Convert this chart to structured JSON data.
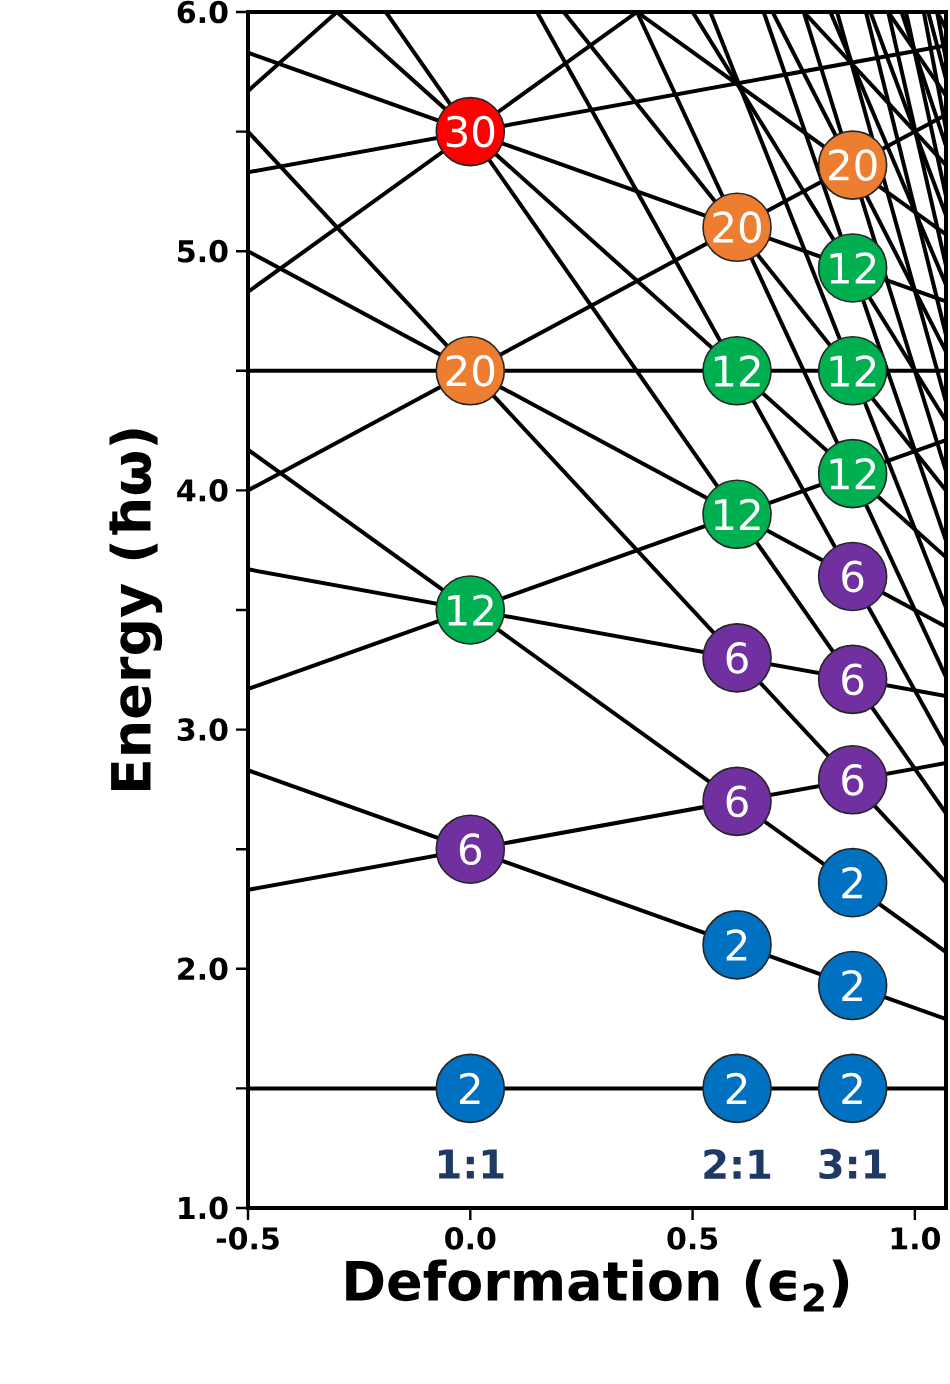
{
  "chart_data": {
    "type": "line",
    "xlabel": "Deformation (ϵ$_{2}$)",
    "ylabel": "Energy (ħω)",
    "xlim": [
      -0.5,
      1.07
    ],
    "ylim": [
      1.0,
      6.0
    ],
    "xticks": [
      {
        "value": -0.5,
        "label": "-0.5"
      },
      {
        "value": 0,
        "label": "0.0"
      },
      {
        "value": 0.5,
        "label": "0.5"
      },
      {
        "value": 1.0,
        "label": "1.0"
      }
    ],
    "yticks": [
      {
        "value": 1,
        "label": "1.0"
      },
      {
        "value": 1.5,
        "label": null
      },
      {
        "value": 2,
        "label": "2.0"
      },
      {
        "value": 2.5,
        "label": null
      },
      {
        "value": 3,
        "label": "3.0"
      },
      {
        "value": 3.5,
        "label": null
      },
      {
        "value": 4,
        "label": "4.0"
      },
      {
        "value": 4.5,
        "label": null
      },
      {
        "value": 5,
        "label": "5.0"
      },
      {
        "value": 5.5,
        "label": null
      },
      {
        "value": 6,
        "label": "6.0"
      }
    ],
    "annotations": [
      "1:1",
      "2:1",
      "3:1",
      {
        "text": "2",
        "x": 0,
        "y": 1.5
      },
      {
        "text": "2",
        "x": 0.6,
        "y": 1.5
      },
      {
        "text": "2",
        "x": 0.86,
        "y": 1.5
      },
      {
        "text": "2",
        "x": 0.6,
        "y": 2.1
      },
      {
        "text": "2",
        "x": 0.86,
        "y": 1.93
      },
      {
        "text": "2",
        "x": 0.86,
        "y": 2.36
      },
      {
        "text": "6",
        "x": 0,
        "y": 2.5
      },
      {
        "text": "6",
        "x": 0.6,
        "y": 2.7
      },
      {
        "text": "6",
        "x": 0.6,
        "y": 3.3
      },
      {
        "text": "6",
        "x": 0.86,
        "y": 2.79
      },
      {
        "text": "6",
        "x": 0.86,
        "y": 3.21
      },
      {
        "text": "6",
        "x": 0.86,
        "y": 3.64
      },
      {
        "text": "12",
        "x": 0,
        "y": 3.5
      },
      {
        "text": "12",
        "x": 0.6,
        "y": 3.9
      },
      {
        "text": "12",
        "x": 0.6,
        "y": 4.5
      },
      {
        "text": "12",
        "x": 0.86,
        "y": 4.07
      },
      {
        "text": "12",
        "x": 0.86,
        "y": 4.5
      },
      {
        "text": "12",
        "x": 0.86,
        "y": 4.93
      },
      {
        "text": "20",
        "x": 0,
        "y": 4.5
      },
      {
        "text": "20",
        "x": 0.6,
        "y": 5.1
      },
      {
        "text": "20",
        "x": 0.86,
        "y": 5.36
      },
      {
        "text": "30",
        "x": 0,
        "y": 5.5
      }
    ],
    "series": [
      {
        "color": "#000000",
        "x": [
          -0.5,
          1.07
        ],
        "values": [
          1.5,
          1.5
        ]
      },
      {
        "color": "#000000",
        "x": [
          -0.5,
          1.07
        ],
        "values": [
          2.33,
          2.86
        ]
      },
      {
        "color": "#000000",
        "x": [
          -0.5,
          1.07
        ],
        "values": [
          2.83,
          1.79
        ]
      },
      {
        "color": "#000000",
        "x": [
          -0.5,
          1.07
        ],
        "values": [
          3.17,
          4.21
        ]
      },
      {
        "color": "#000000",
        "x": [
          -0.5,
          1.07
        ],
        "values": [
          3.67,
          3.14
        ]
      },
      {
        "color": "#000000",
        "x": [
          -0.5,
          1.07
        ],
        "values": [
          4.17,
          2.07
        ]
      },
      {
        "color": "#000000",
        "x": [
          -0.5,
          1.07
        ],
        "values": [
          4.0,
          5.57
        ]
      },
      {
        "color": "#000000",
        "x": [
          -0.5,
          1.07
        ],
        "values": [
          4.5,
          4.5
        ]
      },
      {
        "color": "#000000",
        "x": [
          -0.5,
          1.07
        ],
        "values": [
          5.0,
          3.43
        ]
      },
      {
        "color": "#000000",
        "x": [
          -0.5,
          1.07
        ],
        "values": [
          5.5,
          2.36
        ]
      },
      {
        "color": "#000000",
        "x": [
          -0.5,
          0.375
        ],
        "values": [
          4.83,
          6.0
        ]
      },
      {
        "color": "#000000",
        "x": [
          -0.5,
          1.07
        ],
        "values": [
          5.33,
          5.86
        ]
      },
      {
        "color": "#000000",
        "x": [
          -0.5,
          1.07
        ],
        "values": [
          5.83,
          4.79
        ]
      },
      {
        "color": "#000000",
        "x": [
          -0.3,
          1.07
        ],
        "values": [
          6.0,
          3.72
        ]
      },
      {
        "color": "#000000",
        "x": [
          -0.19,
          1.07
        ],
        "values": [
          6.0,
          2.65
        ]
      },
      {
        "color": "#000000",
        "x": [
          -0.5,
          -0.3
        ],
        "values": [
          5.67,
          6.0
        ]
      },
      {
        "color": "#000000",
        "x": [
          0.375,
          1.07
        ],
        "values": [
          6.0,
          5.07
        ]
      },
      {
        "color": "#000000",
        "x": [
          0.21,
          1.07
        ],
        "values": [
          6.0,
          4.0
        ]
      },
      {
        "color": "#000000",
        "x": [
          0.15,
          1.07
        ],
        "values": [
          6.0,
          2.93
        ]
      },
      {
        "color": "#000000",
        "x": [
          0.75,
          1.07
        ],
        "values": [
          6.0,
          5.36
        ]
      },
      {
        "color": "#000000",
        "x": [
          0.5,
          1.07
        ],
        "values": [
          6.0,
          4.29
        ]
      },
      {
        "color": "#000000",
        "x": [
          0.375,
          1.07
        ],
        "values": [
          6.0,
          3.22
        ]
      },
      {
        "color": "#000000",
        "x": [
          0.94,
          1.07
        ],
        "values": [
          6.0,
          5.65
        ]
      },
      {
        "color": "#000000",
        "x": [
          0.68,
          1.07
        ],
        "values": [
          6.0,
          4.58
        ]
      },
      {
        "color": "#000000",
        "x": [
          0.54,
          1.07
        ],
        "values": [
          6.0,
          3.51
        ]
      },
      {
        "color": "#000000",
        "x": [
          1.05,
          1.07
        ],
        "values": [
          6.0,
          5.93
        ]
      },
      {
        "color": "#000000",
        "x": [
          0.81,
          1.07
        ],
        "values": [
          6.0,
          4.86
        ]
      },
      {
        "color": "#000000",
        "x": [
          0.66,
          1.07
        ],
        "values": [
          6.0,
          3.79
        ]
      },
      {
        "color": "#000000",
        "x": [
          0.9,
          1.07
        ],
        "values": [
          6.0,
          5.15
        ]
      },
      {
        "color": "#000000",
        "x": [
          0.75,
          1.07
        ],
        "values": [
          6.0,
          4.08
        ]
      },
      {
        "color": "#000000",
        "x": [
          0.97,
          1.07
        ],
        "values": [
          6.0,
          5.44
        ]
      },
      {
        "color": "#000000",
        "x": [
          0.825,
          1.07
        ],
        "values": [
          6.0,
          4.37
        ]
      },
      {
        "color": "#000000",
        "x": [
          1.03,
          1.07
        ],
        "values": [
          6.0,
          5.72
        ]
      },
      {
        "color": "#000000",
        "x": [
          0.89,
          1.07
        ],
        "values": [
          6.0,
          4.65
        ]
      },
      {
        "color": "#000000",
        "x": [
          0.94,
          1.07
        ],
        "values": [
          6.0,
          4.94
        ]
      },
      {
        "color": "#000000",
        "x": [
          0.98,
          1.07
        ],
        "values": [
          6.0,
          5.23
        ]
      },
      {
        "color": "#000000",
        "x": [
          1.02,
          1.07
        ],
        "values": [
          6.0,
          5.51
        ]
      },
      {
        "color": "#000000",
        "x": [
          1.05,
          1.07
        ],
        "values": [
          6.0,
          5.8
        ]
      },
      {
        "type": "scatter",
        "marker": "circle",
        "color": "#0070c0",
        "x": [
          0,
          0.6,
          0.86,
          0.6,
          0.86,
          0.86
        ],
        "values": [
          1.5,
          1.5,
          1.5,
          2.1,
          1.93,
          2.36
        ]
      },
      {
        "type": "scatter",
        "marker": "circle",
        "color": "#7030a0",
        "x": [
          0,
          0.6,
          0.6,
          0.86,
          0.86,
          0.86
        ],
        "values": [
          2.5,
          2.7,
          3.3,
          2.79,
          3.21,
          3.64
        ]
      },
      {
        "type": "scatter",
        "marker": "circle",
        "color": "#00b050",
        "x": [
          0,
          0.6,
          0.6,
          0.86,
          0.86,
          0.86
        ],
        "values": [
          3.5,
          3.9,
          4.5,
          4.07,
          4.5,
          4.93
        ]
      },
      {
        "type": "scatter",
        "marker": "circle",
        "color": "#ed7d31",
        "x": [
          0,
          0.6,
          0.86
        ],
        "values": [
          4.5,
          5.1,
          5.36
        ]
      },
      {
        "type": "scatter",
        "marker": "circle",
        "color": "#ff0000",
        "x": [
          0
        ],
        "values": [
          5.5
        ]
      }
    ]
  }
}
